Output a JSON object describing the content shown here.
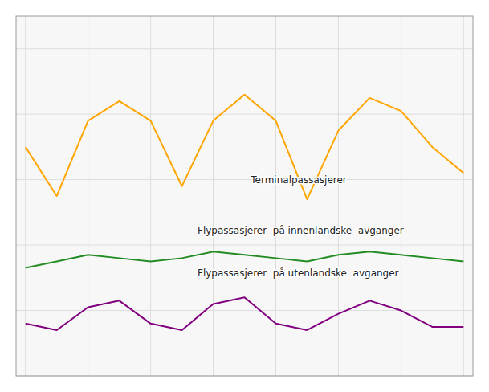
{
  "chart_data": {
    "type": "line",
    "x": [
      0,
      1,
      2,
      3,
      4,
      5,
      6,
      7,
      8,
      9,
      10,
      11,
      12,
      13,
      14
    ],
    "series": [
      {
        "color": "#FFA500",
        "values": [
          7.0,
          5.5,
          7.8,
          8.4,
          7.8,
          5.8,
          7.8,
          8.6,
          7.8,
          5.4,
          7.5,
          8.5,
          8.1,
          7.0,
          6.2
        ]
      },
      {
        "color": "#228B22",
        "values": [
          3.3,
          3.5,
          3.7,
          3.6,
          3.5,
          3.6,
          3.8,
          3.7,
          3.6,
          3.5,
          3.7,
          3.8,
          3.7,
          3.6,
          3.5
        ]
      },
      {
        "color": "#800080",
        "values": [
          1.6,
          1.4,
          2.1,
          2.3,
          1.6,
          1.4,
          2.2,
          2.4,
          1.6,
          1.4,
          1.9,
          2.3,
          2.0,
          1.5,
          1.5
        ]
      }
    ],
    "annotations": [
      {
        "text": "Terminalpassasjerer",
        "x": 7.2,
        "y": 5.9
      },
      {
        "text": "Flypassasjerer  på innenlandske  avganger",
        "x": 5.5,
        "y": 4.35
      },
      {
        "text": "Flypassasjerer  på utenlandske  avganger",
        "x": 5.5,
        "y": 3.05
      }
    ],
    "xlim": [
      -0.3,
      14.3
    ],
    "ylim": [
      0,
      11
    ],
    "xticks": [
      0,
      2,
      4,
      6,
      8,
      10,
      12,
      14
    ],
    "yticks": [
      0,
      2,
      4,
      6,
      8,
      10
    ],
    "grid": true,
    "tick_labels": false
  }
}
